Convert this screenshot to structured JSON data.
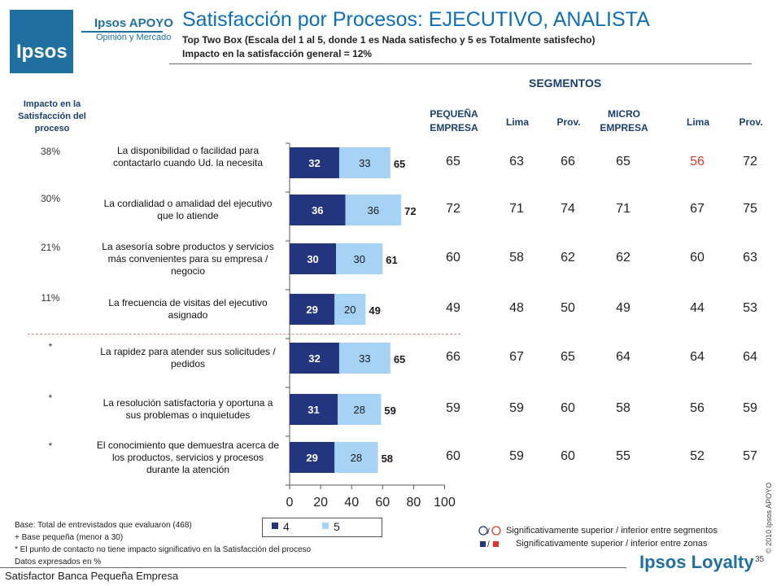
{
  "brand": {
    "logo_text": "Ipsos",
    "name": "Ipsos APOYO",
    "tagline": "Opinión y Mercado",
    "footer_logo": "Ipsos Loyalty"
  },
  "title": "Satisfacción por Procesos: EJECUTIVO, ANALISTA",
  "subtitle": "Top Two Box (Escala del 1 al 5, donde 1 es Nada satisfecho y 5 es Totalmente satisfecho)",
  "impact_title": "Impacto en la satisfacción general = 12%",
  "impact_header": "Impacto en la Satisfacción del proceso",
  "segments_header": "SEGMENTOS",
  "segment_columns": [
    "PEQUEÑA EMPRESA",
    "Lima",
    "Prov.",
    "MICRO EMPRESA",
    "Lima",
    "Prov."
  ],
  "colors": {
    "series4": "#23357f",
    "series5": "#a6d2f5",
    "title": "#0d6fb8",
    "highlight_low": "#e0352b"
  },
  "chart_data": {
    "type": "bar",
    "orientation": "horizontal",
    "stacked": true,
    "categories": [
      "La disponibilidad o facilidad para contactarlo cuando Ud. la necesita",
      "La cordialidad o amalidad del ejecutivo que lo atiende",
      "La asesoría sobre productos y servicios más convenientes para su empresa / negocio",
      "La frecuencia de visitas del ejecutivo asignado",
      "La rapidez para atender sus solicitudes / pedidos",
      "La resolución satisfactoria y oportuna a sus problemas o inquietudes",
      "El conocimiento que demuestra acerca de los productos, servicios y procesos durante la atención"
    ],
    "series": [
      {
        "name": "4",
        "values": [
          32,
          36,
          30,
          29,
          32,
          31,
          29
        ]
      },
      {
        "name": "5",
        "values": [
          33,
          36,
          30,
          20,
          33,
          28,
          28
        ]
      }
    ],
    "totals": [
      65,
      72,
      61,
      49,
      65,
      59,
      58
    ],
    "impact": [
      "38%",
      "30%",
      "21%",
      "11%",
      "*",
      "*",
      "*"
    ],
    "xlim": [
      0,
      100
    ],
    "xticks": [
      0,
      20,
      40,
      60,
      80,
      100
    ],
    "legend_position": "bottom",
    "grid": false
  },
  "segment_values": [
    [
      65,
      63,
      66,
      65,
      56,
      72
    ],
    [
      72,
      71,
      74,
      71,
      67,
      75
    ],
    [
      60,
      58,
      62,
      62,
      60,
      63
    ],
    [
      49,
      48,
      50,
      49,
      44,
      53
    ],
    [
      66,
      67,
      65,
      64,
      64,
      64
    ],
    [
      59,
      59,
      60,
      58,
      56,
      59
    ],
    [
      60,
      59,
      60,
      55,
      52,
      57
    ]
  ],
  "segment_highlight": [
    [
      0,
      4
    ]
  ],
  "footnotes": [
    "Base: Total de entrevistados que evaluaron (468)",
    "+ Base pequeña (menor a 30)",
    "* El punto de contacto no tiene impacto significativo en la Satisfacción del proceso",
    "Datos expresados en %"
  ],
  "significance": [
    "Significativamente superior / inferior entre segmentos",
    "Significativamente superior / inferior entre zonas"
  ],
  "page_number": "35",
  "copyright": "© 2010 Ipsos APOYO",
  "footer_text": "Satisfactor Banca Pequeña Empresa"
}
